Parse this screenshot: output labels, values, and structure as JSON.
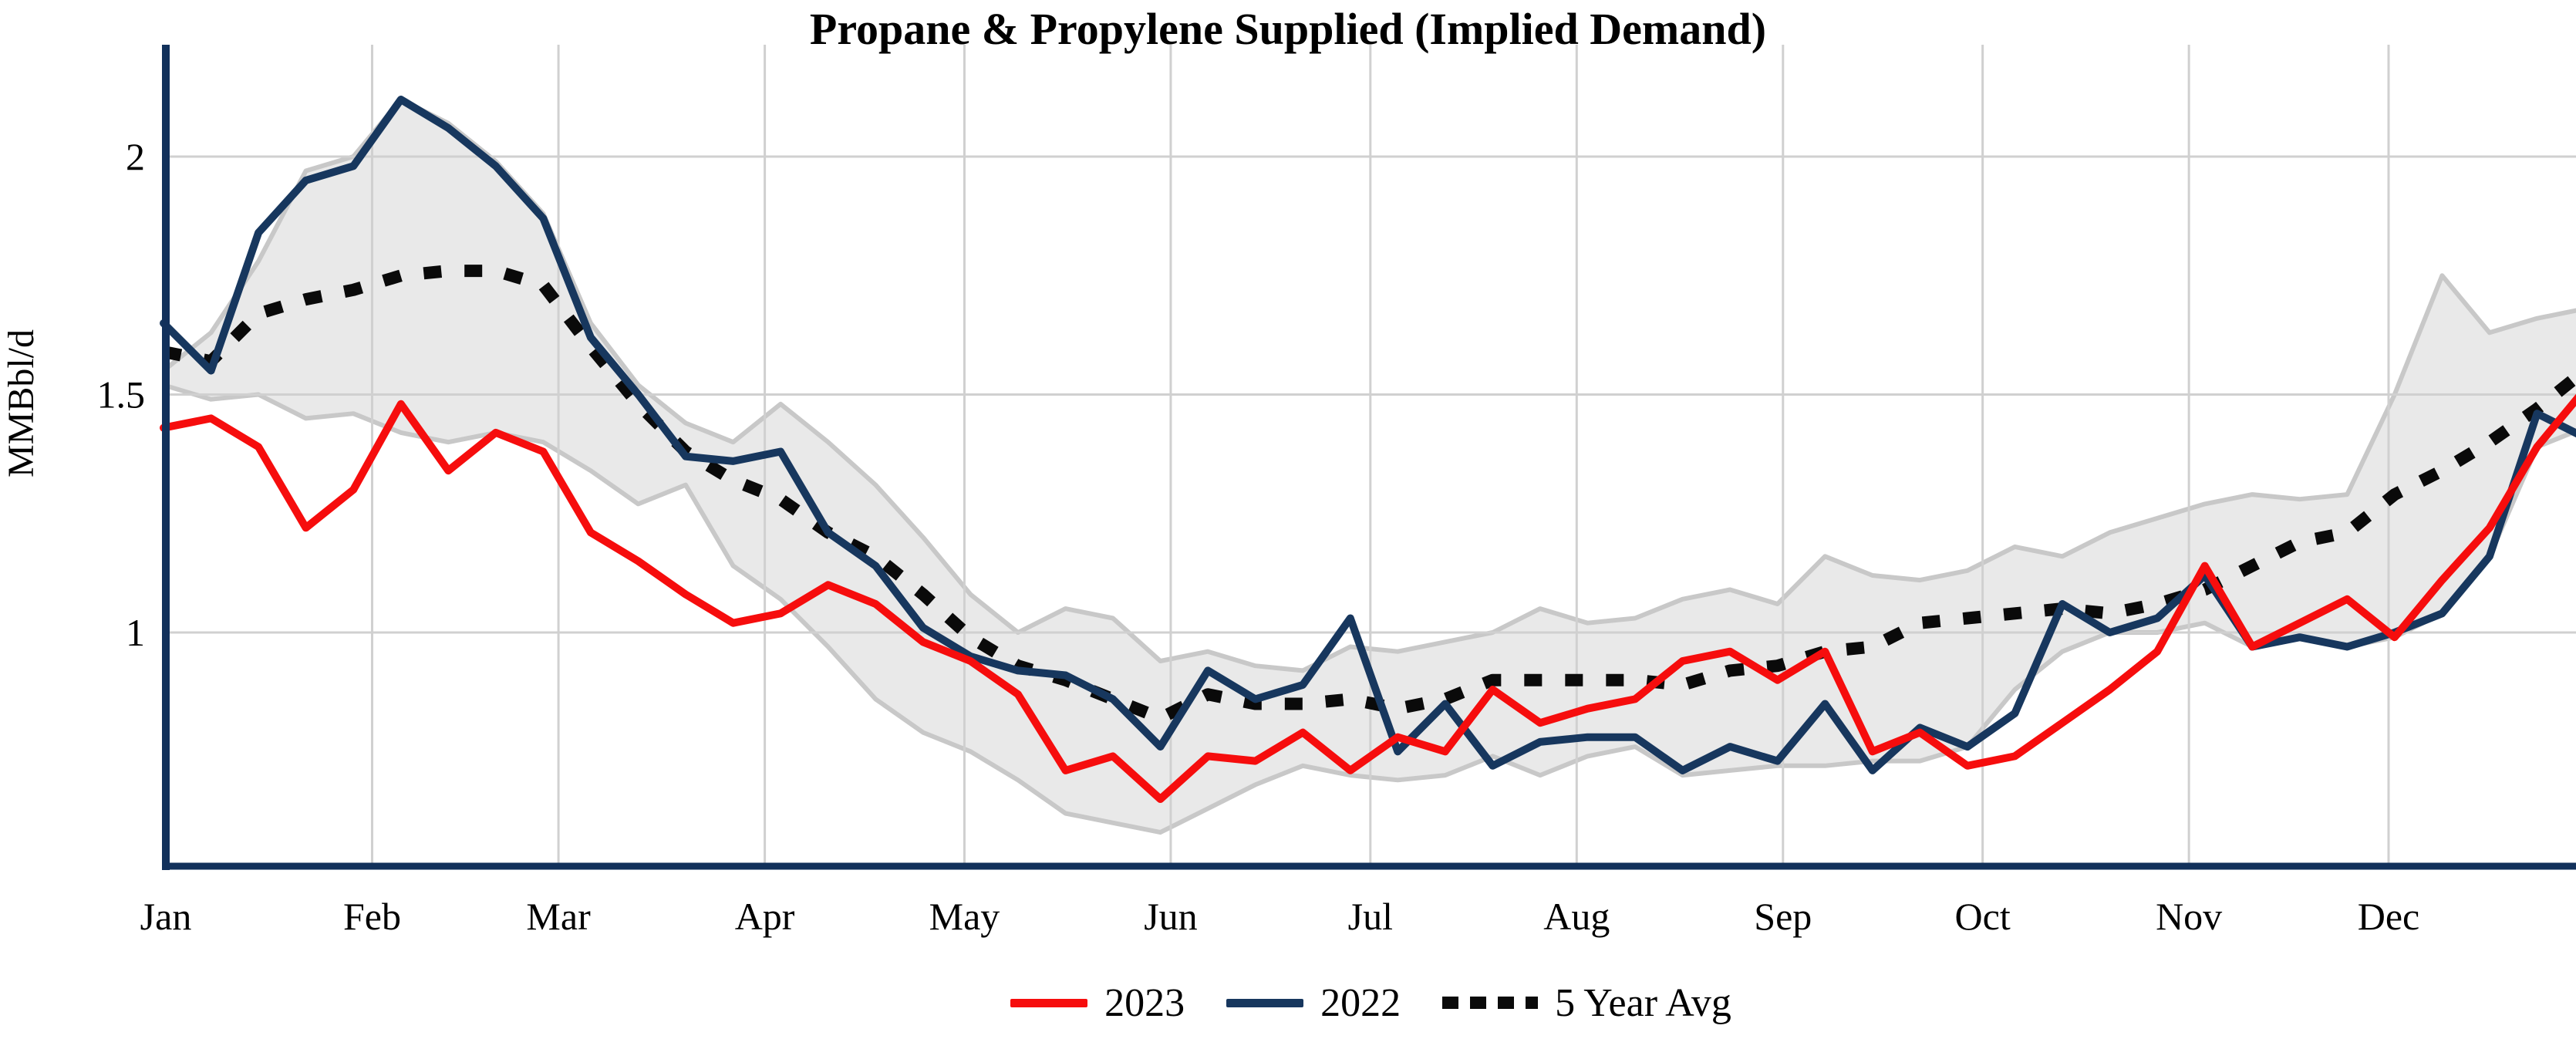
{
  "title": "Propane & Propylene Supplied (Implied Demand)",
  "y_axis": {
    "label": "MMBbl/d",
    "ticks": [
      {
        "label": "2",
        "value": 2.0
      },
      {
        "label": "1.5",
        "value": 1.5
      },
      {
        "label": "1",
        "value": 1.0
      }
    ]
  },
  "x_axis": {
    "months": [
      "Jan",
      "Feb",
      "Mar",
      "Apr",
      "May",
      "Jun",
      "Jul",
      "Aug",
      "Sep",
      "Oct",
      "Nov",
      "Dec"
    ]
  },
  "legend": {
    "items": [
      {
        "label": "2023",
        "series": "2023"
      },
      {
        "label": "2022",
        "series": "2022"
      },
      {
        "label": "5 Year Avg",
        "series": "5_year_avg"
      }
    ]
  },
  "colors": {
    "year_2023": "#f60d0d",
    "year_2022": "#17375e",
    "five_year_avg": "#0a0a0a",
    "range_fill": "#e9e9e9",
    "range_edge": "#c8c8c8",
    "gridline": "#d0d0d0",
    "axis": "#12315b"
  },
  "chart_data": {
    "type": "line",
    "title": "Propane & Propylene Supplied (Implied Demand)",
    "xlabel": "",
    "ylabel": "MMBbl/d",
    "x_description": "52 weekly observations spanning Jan through Dec",
    "x": [
      1,
      2,
      3,
      4,
      5,
      6,
      7,
      8,
      9,
      10,
      11,
      12,
      13,
      14,
      15,
      16,
      17,
      18,
      19,
      20,
      21,
      22,
      23,
      24,
      25,
      26,
      27,
      28,
      29,
      30,
      31,
      32,
      33,
      34,
      35,
      36,
      37,
      38,
      39,
      40,
      41,
      42,
      43,
      44,
      45,
      46,
      47,
      48,
      49,
      50,
      51,
      52
    ],
    "ylim": [
      0.51,
      2.23
    ],
    "grid": true,
    "legend_position": "bottom",
    "series": [
      {
        "name": "2023",
        "style": "solid",
        "values": [
          1.43,
          1.45,
          1.39,
          1.22,
          1.3,
          1.48,
          1.34,
          1.42,
          1.38,
          1.21,
          1.15,
          1.08,
          1.02,
          1.04,
          1.1,
          1.06,
          0.98,
          0.94,
          0.87,
          0.71,
          0.74,
          0.65,
          0.74,
          0.73,
          0.79,
          0.71,
          0.78,
          0.75,
          0.88,
          0.81,
          0.84,
          0.86,
          0.94,
          0.96,
          0.9,
          0.96,
          0.75,
          0.79,
          0.72,
          0.74,
          0.81,
          0.88,
          0.96,
          1.14,
          0.97,
          1.02,
          1.07,
          0.99,
          1.11,
          1.22,
          1.39,
          1.51
        ]
      },
      {
        "name": "2022",
        "style": "solid",
        "values": [
          1.65,
          1.55,
          1.84,
          1.95,
          1.98,
          2.12,
          2.06,
          1.98,
          1.87,
          1.62,
          1.5,
          1.37,
          1.36,
          1.38,
          1.21,
          1.14,
          1.01,
          0.95,
          0.92,
          0.91,
          0.86,
          0.76,
          0.92,
          0.86,
          0.89,
          1.03,
          0.75,
          0.85,
          0.72,
          0.77,
          0.78,
          0.78,
          0.71,
          0.76,
          0.73,
          0.85,
          0.71,
          0.8,
          0.76,
          0.83,
          1.06,
          1.0,
          1.03,
          1.12,
          0.97,
          0.99,
          0.97,
          1.0,
          1.04,
          1.16,
          1.46,
          1.41
        ]
      },
      {
        "name": "5 Year Avg",
        "style": "dotted",
        "values": [
          1.59,
          1.57,
          1.67,
          1.7,
          1.72,
          1.75,
          1.76,
          1.76,
          1.73,
          1.6,
          1.48,
          1.38,
          1.32,
          1.28,
          1.21,
          1.16,
          1.08,
          0.99,
          0.93,
          0.9,
          0.86,
          0.82,
          0.87,
          0.85,
          0.85,
          0.86,
          0.84,
          0.86,
          0.9,
          0.9,
          0.9,
          0.9,
          0.89,
          0.92,
          0.93,
          0.96,
          0.97,
          1.02,
          1.03,
          1.04,
          1.05,
          1.04,
          1.06,
          1.09,
          1.14,
          1.19,
          1.21,
          1.29,
          1.34,
          1.4,
          1.47,
          1.55
        ]
      }
    ],
    "band": {
      "name": "5 Year Range",
      "upper": [
        1.55,
        1.63,
        1.78,
        1.97,
        2.0,
        2.12,
        2.07,
        1.99,
        1.88,
        1.65,
        1.52,
        1.44,
        1.4,
        1.48,
        1.4,
        1.31,
        1.2,
        1.08,
        1.0,
        1.05,
        1.03,
        0.94,
        0.96,
        0.93,
        0.92,
        0.97,
        0.96,
        0.98,
        1.0,
        1.05,
        1.02,
        1.03,
        1.07,
        1.09,
        1.06,
        1.16,
        1.12,
        1.11,
        1.13,
        1.18,
        1.16,
        1.21,
        1.24,
        1.27,
        1.29,
        1.28,
        1.29,
        1.5,
        1.75,
        1.63,
        1.66,
        1.68
      ],
      "lower": [
        1.52,
        1.49,
        1.5,
        1.45,
        1.46,
        1.42,
        1.4,
        1.42,
        1.4,
        1.34,
        1.27,
        1.31,
        1.14,
        1.07,
        0.97,
        0.86,
        0.79,
        0.75,
        0.69,
        0.62,
        0.6,
        0.58,
        0.63,
        0.68,
        0.72,
        0.7,
        0.69,
        0.7,
        0.74,
        0.7,
        0.74,
        0.76,
        0.7,
        0.71,
        0.72,
        0.72,
        0.73,
        0.73,
        0.76,
        0.88,
        0.96,
        1.0,
        1.0,
        1.02,
        0.97,
        0.99,
        0.97,
        0.99,
        1.04,
        1.16,
        1.39,
        1.43
      ]
    }
  }
}
